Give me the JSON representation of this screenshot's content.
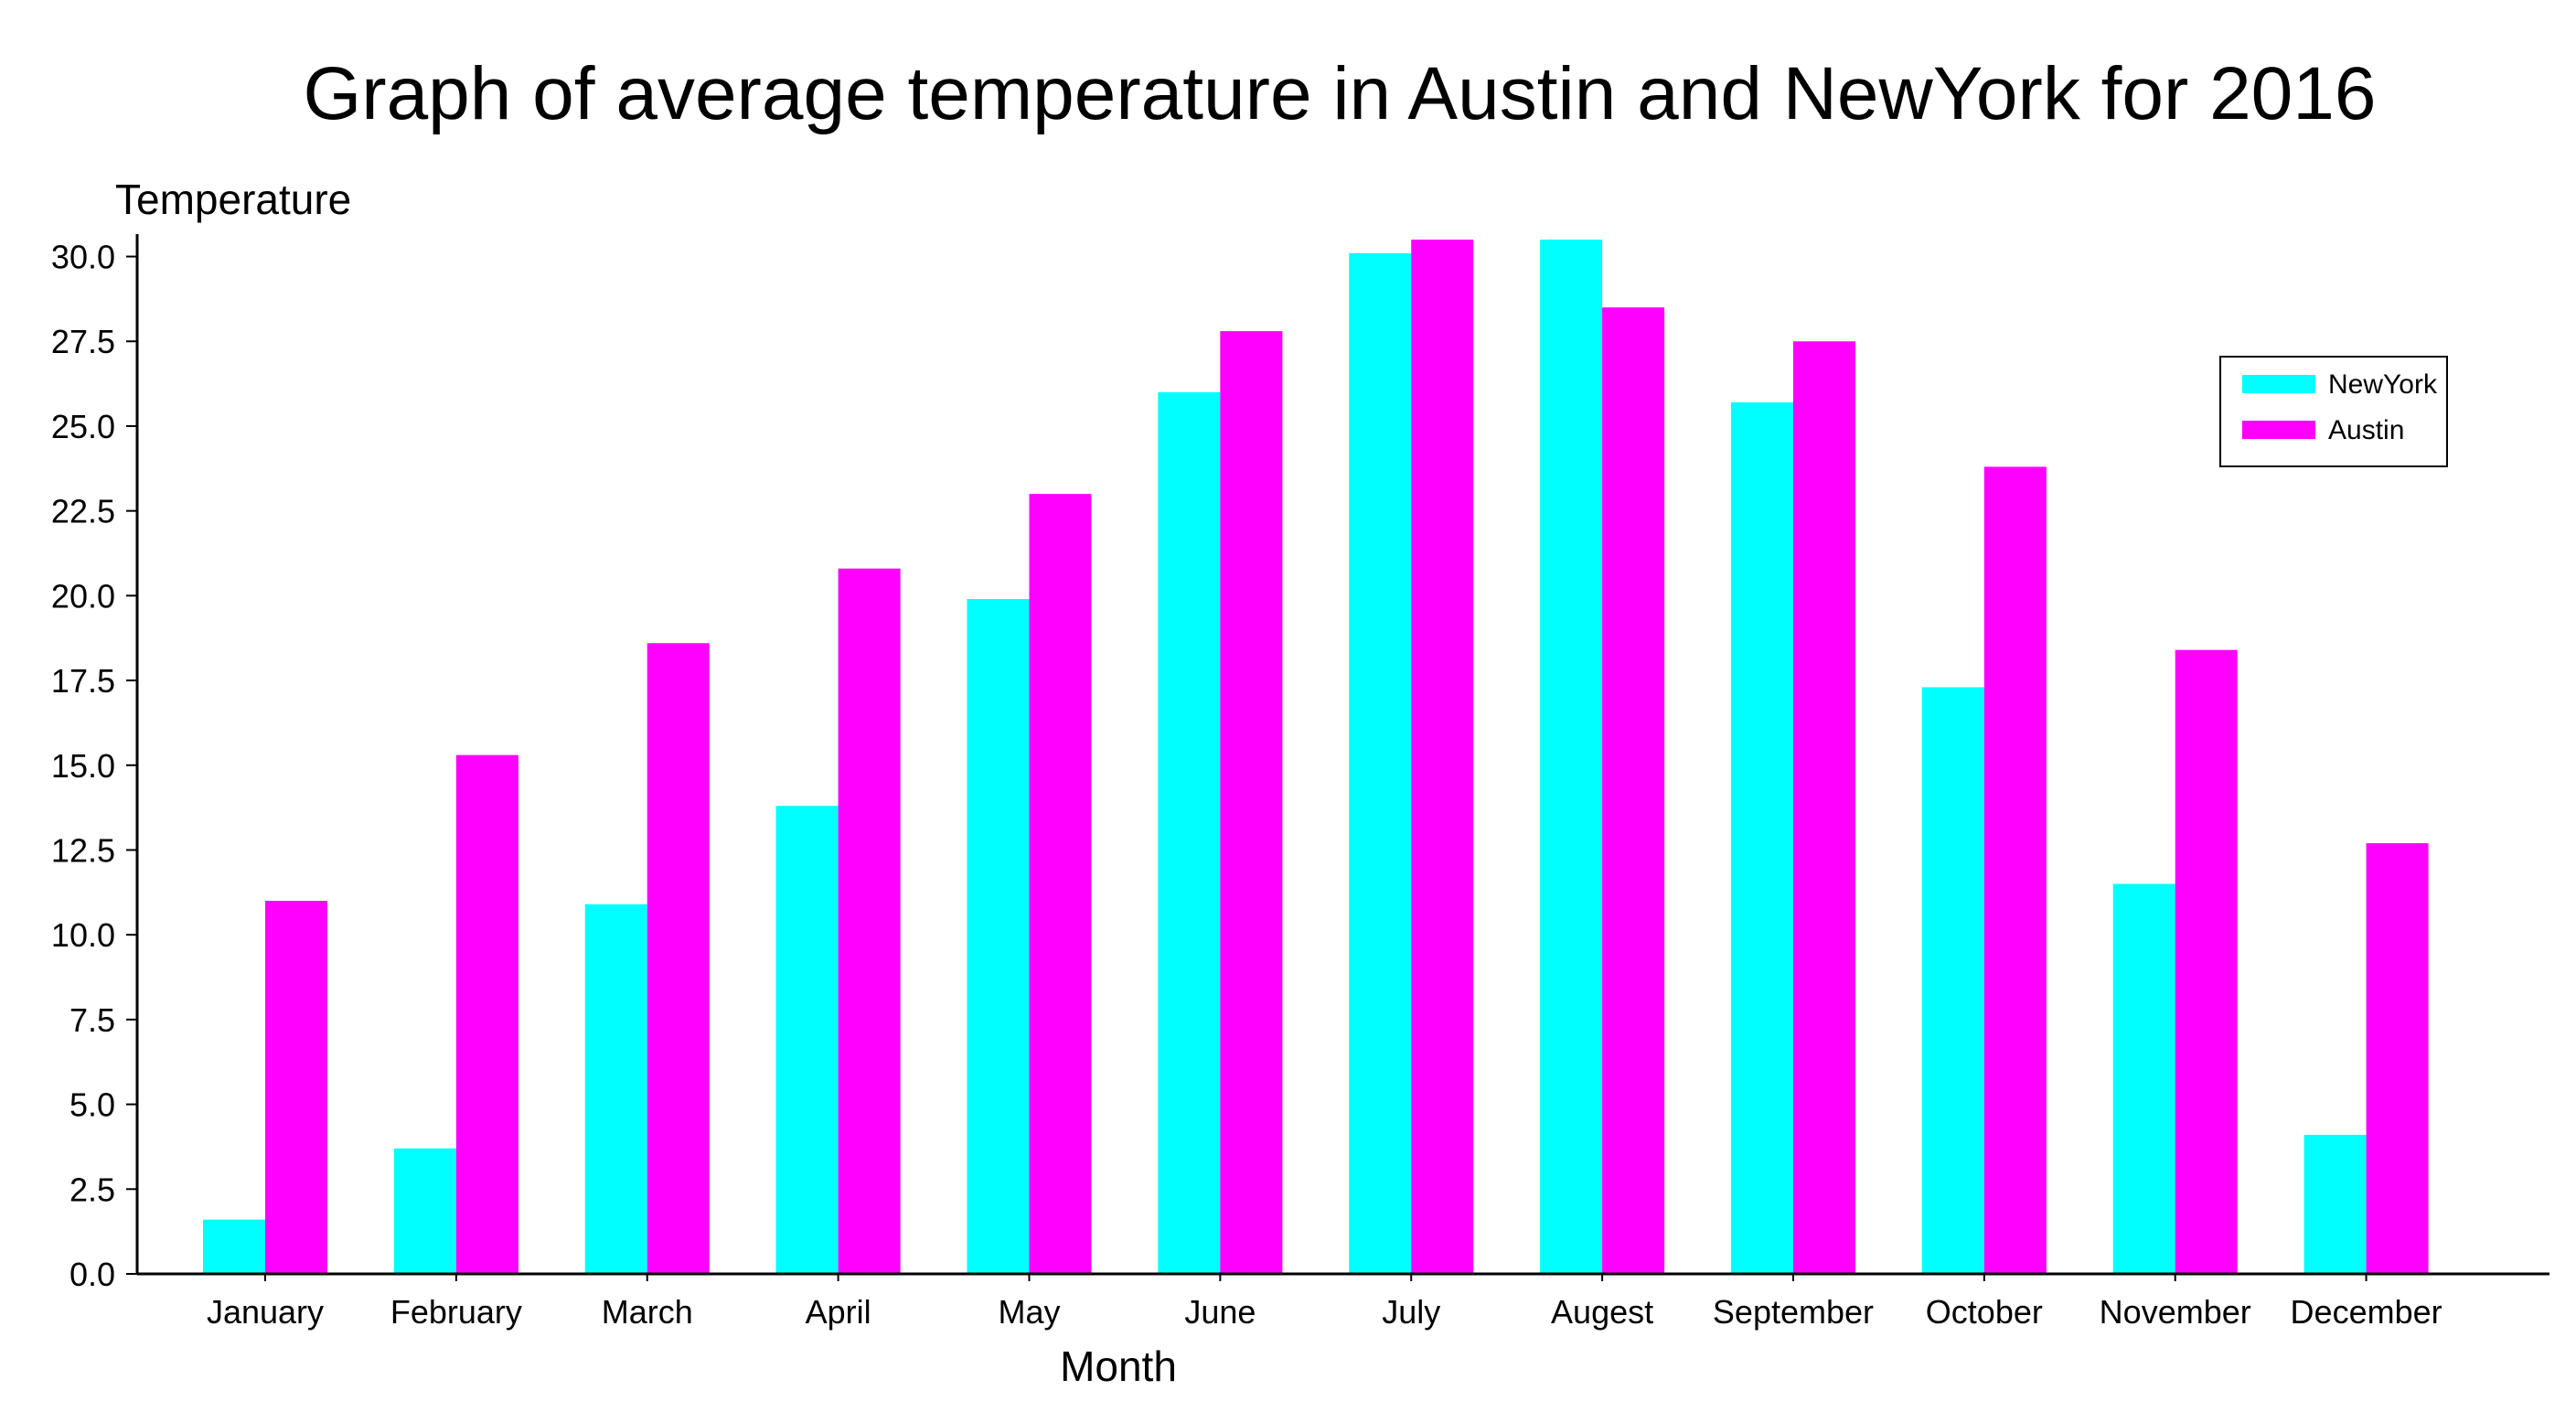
{
  "chart_data": {
    "type": "bar",
    "title": "Graph of average temperature in Austin and NewYork for 2016",
    "xlabel": "Month",
    "ylabel": "Temperature",
    "categories": [
      "January",
      "February",
      "March",
      "April",
      "May",
      "June",
      "July",
      "Augest",
      "September",
      "October",
      "November",
      "December"
    ],
    "series": [
      {
        "name": "NewYork",
        "color": "#00ffff",
        "values": [
          1.6,
          3.7,
          10.9,
          13.8,
          19.9,
          26.0,
          30.1,
          30.5,
          25.7,
          17.3,
          11.5,
          4.1
        ]
      },
      {
        "name": "Austin",
        "color": "#ff00ff",
        "values": [
          11.0,
          15.3,
          18.6,
          20.8,
          23.0,
          27.8,
          30.5,
          28.5,
          27.5,
          23.8,
          18.4,
          12.7
        ]
      }
    ],
    "ylim": [
      0,
      30.5
    ],
    "yticks": [
      0.0,
      2.5,
      5.0,
      7.5,
      10.0,
      12.5,
      15.0,
      17.5,
      20.0,
      22.5,
      25.0,
      27.5,
      30.0
    ],
    "grid": false,
    "legend_position": "top-right"
  }
}
